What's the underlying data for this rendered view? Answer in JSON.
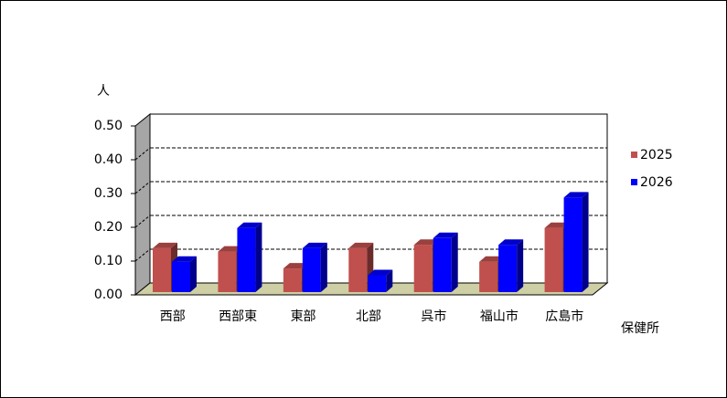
{
  "chart_data": {
    "type": "bar3d",
    "y_axis_title": "人",
    "x_axis_title": "保健所",
    "categories": [
      "西部",
      "西部東",
      "東部",
      "北部",
      "呉市",
      "福山市",
      "広島市"
    ],
    "series": [
      {
        "name": "2025",
        "color": "#c0504d",
        "values": [
          0.13,
          0.12,
          0.07,
          0.13,
          0.14,
          0.09,
          0.19
        ]
      },
      {
        "name": "2026",
        "color": "#0000ff",
        "values": [
          0.09,
          0.19,
          0.13,
          0.05,
          0.16,
          0.14,
          0.28
        ]
      }
    ],
    "ylim": [
      0,
      0.5
    ],
    "yticks": [
      {
        "value": 0,
        "label": "0.00"
      },
      {
        "value": 0.1,
        "label": "0.10"
      },
      {
        "value": 0.2,
        "label": "0.20"
      },
      {
        "value": 0.3,
        "label": "0.30"
      },
      {
        "value": 0.4,
        "label": "0.40"
      },
      {
        "value": 0.5,
        "label": "0.50"
      }
    ],
    "grid": true,
    "legend": "right"
  }
}
